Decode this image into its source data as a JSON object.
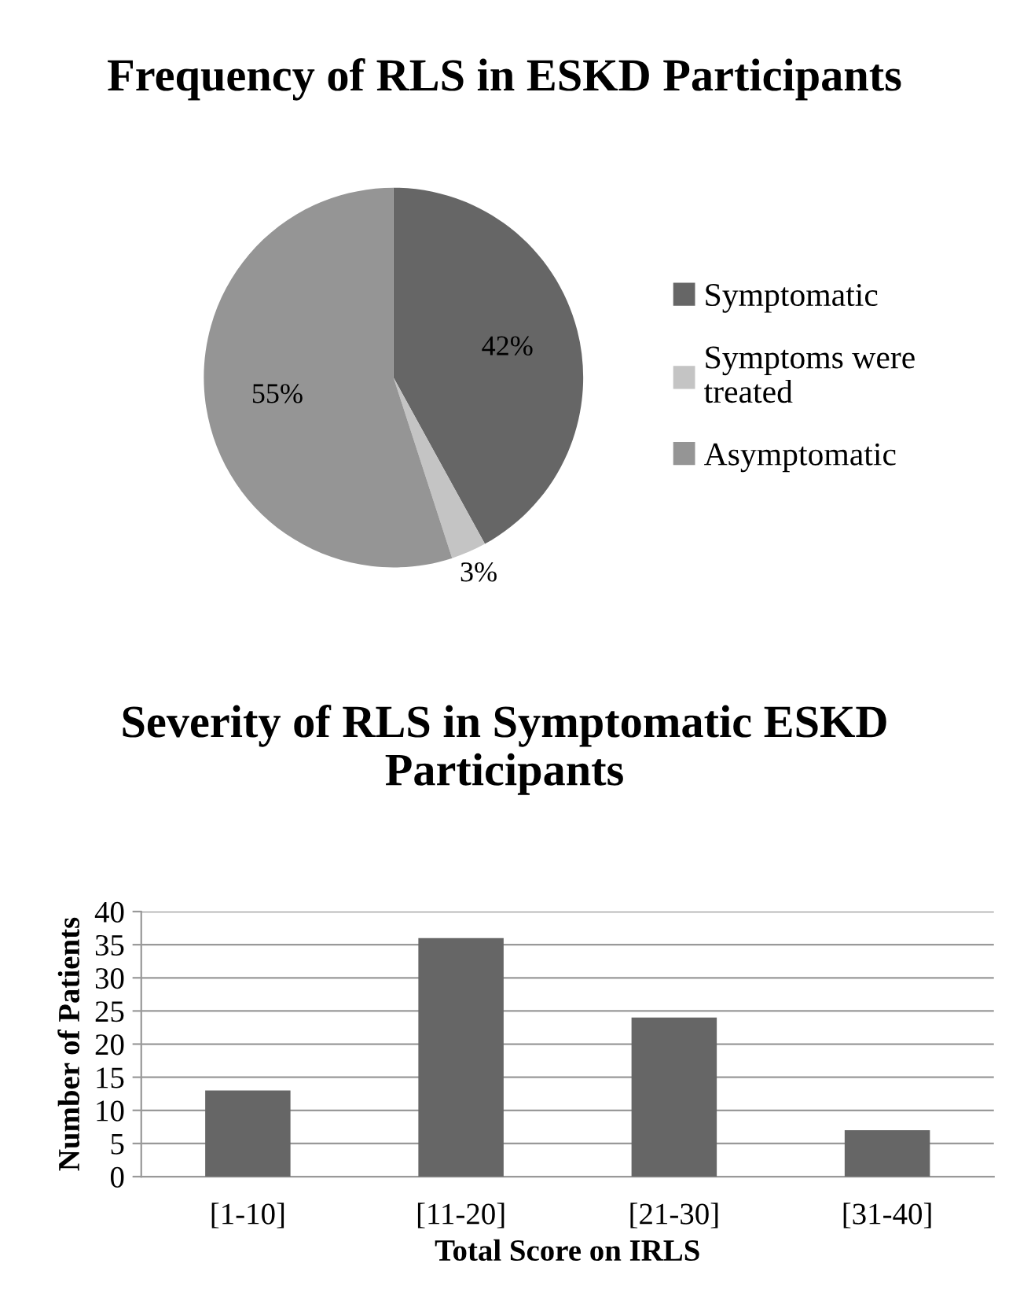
{
  "chart_data": [
    {
      "type": "pie",
      "title": "Frequency of RLS in ESKD Participants",
      "categories": [
        "Symptomatic",
        "Symptoms were\ntreated",
        "Asymptomatic"
      ],
      "values": [
        42,
        3,
        55
      ],
      "colors": [
        "#666666",
        "#c4c4c4",
        "#959595"
      ],
      "value_labels": [
        "42%",
        "3%",
        "55%"
      ],
      "legend": "right"
    },
    {
      "type": "bar",
      "title": "Severity of RLS in Symptomatic ESKD\nParticipants",
      "xlabel": "Total Score on IRLS",
      "ylabel": "Number of Patients",
      "categories": [
        "[1-10]",
        "[11-20]",
        "[21-30]",
        "[31-40]"
      ],
      "values": [
        13,
        36,
        24,
        7
      ],
      "color": "#666666",
      "ylim": [
        0,
        40
      ],
      "yticks": [
        0,
        5,
        10,
        15,
        20,
        25,
        30,
        35,
        40
      ],
      "grid": "y"
    }
  ]
}
